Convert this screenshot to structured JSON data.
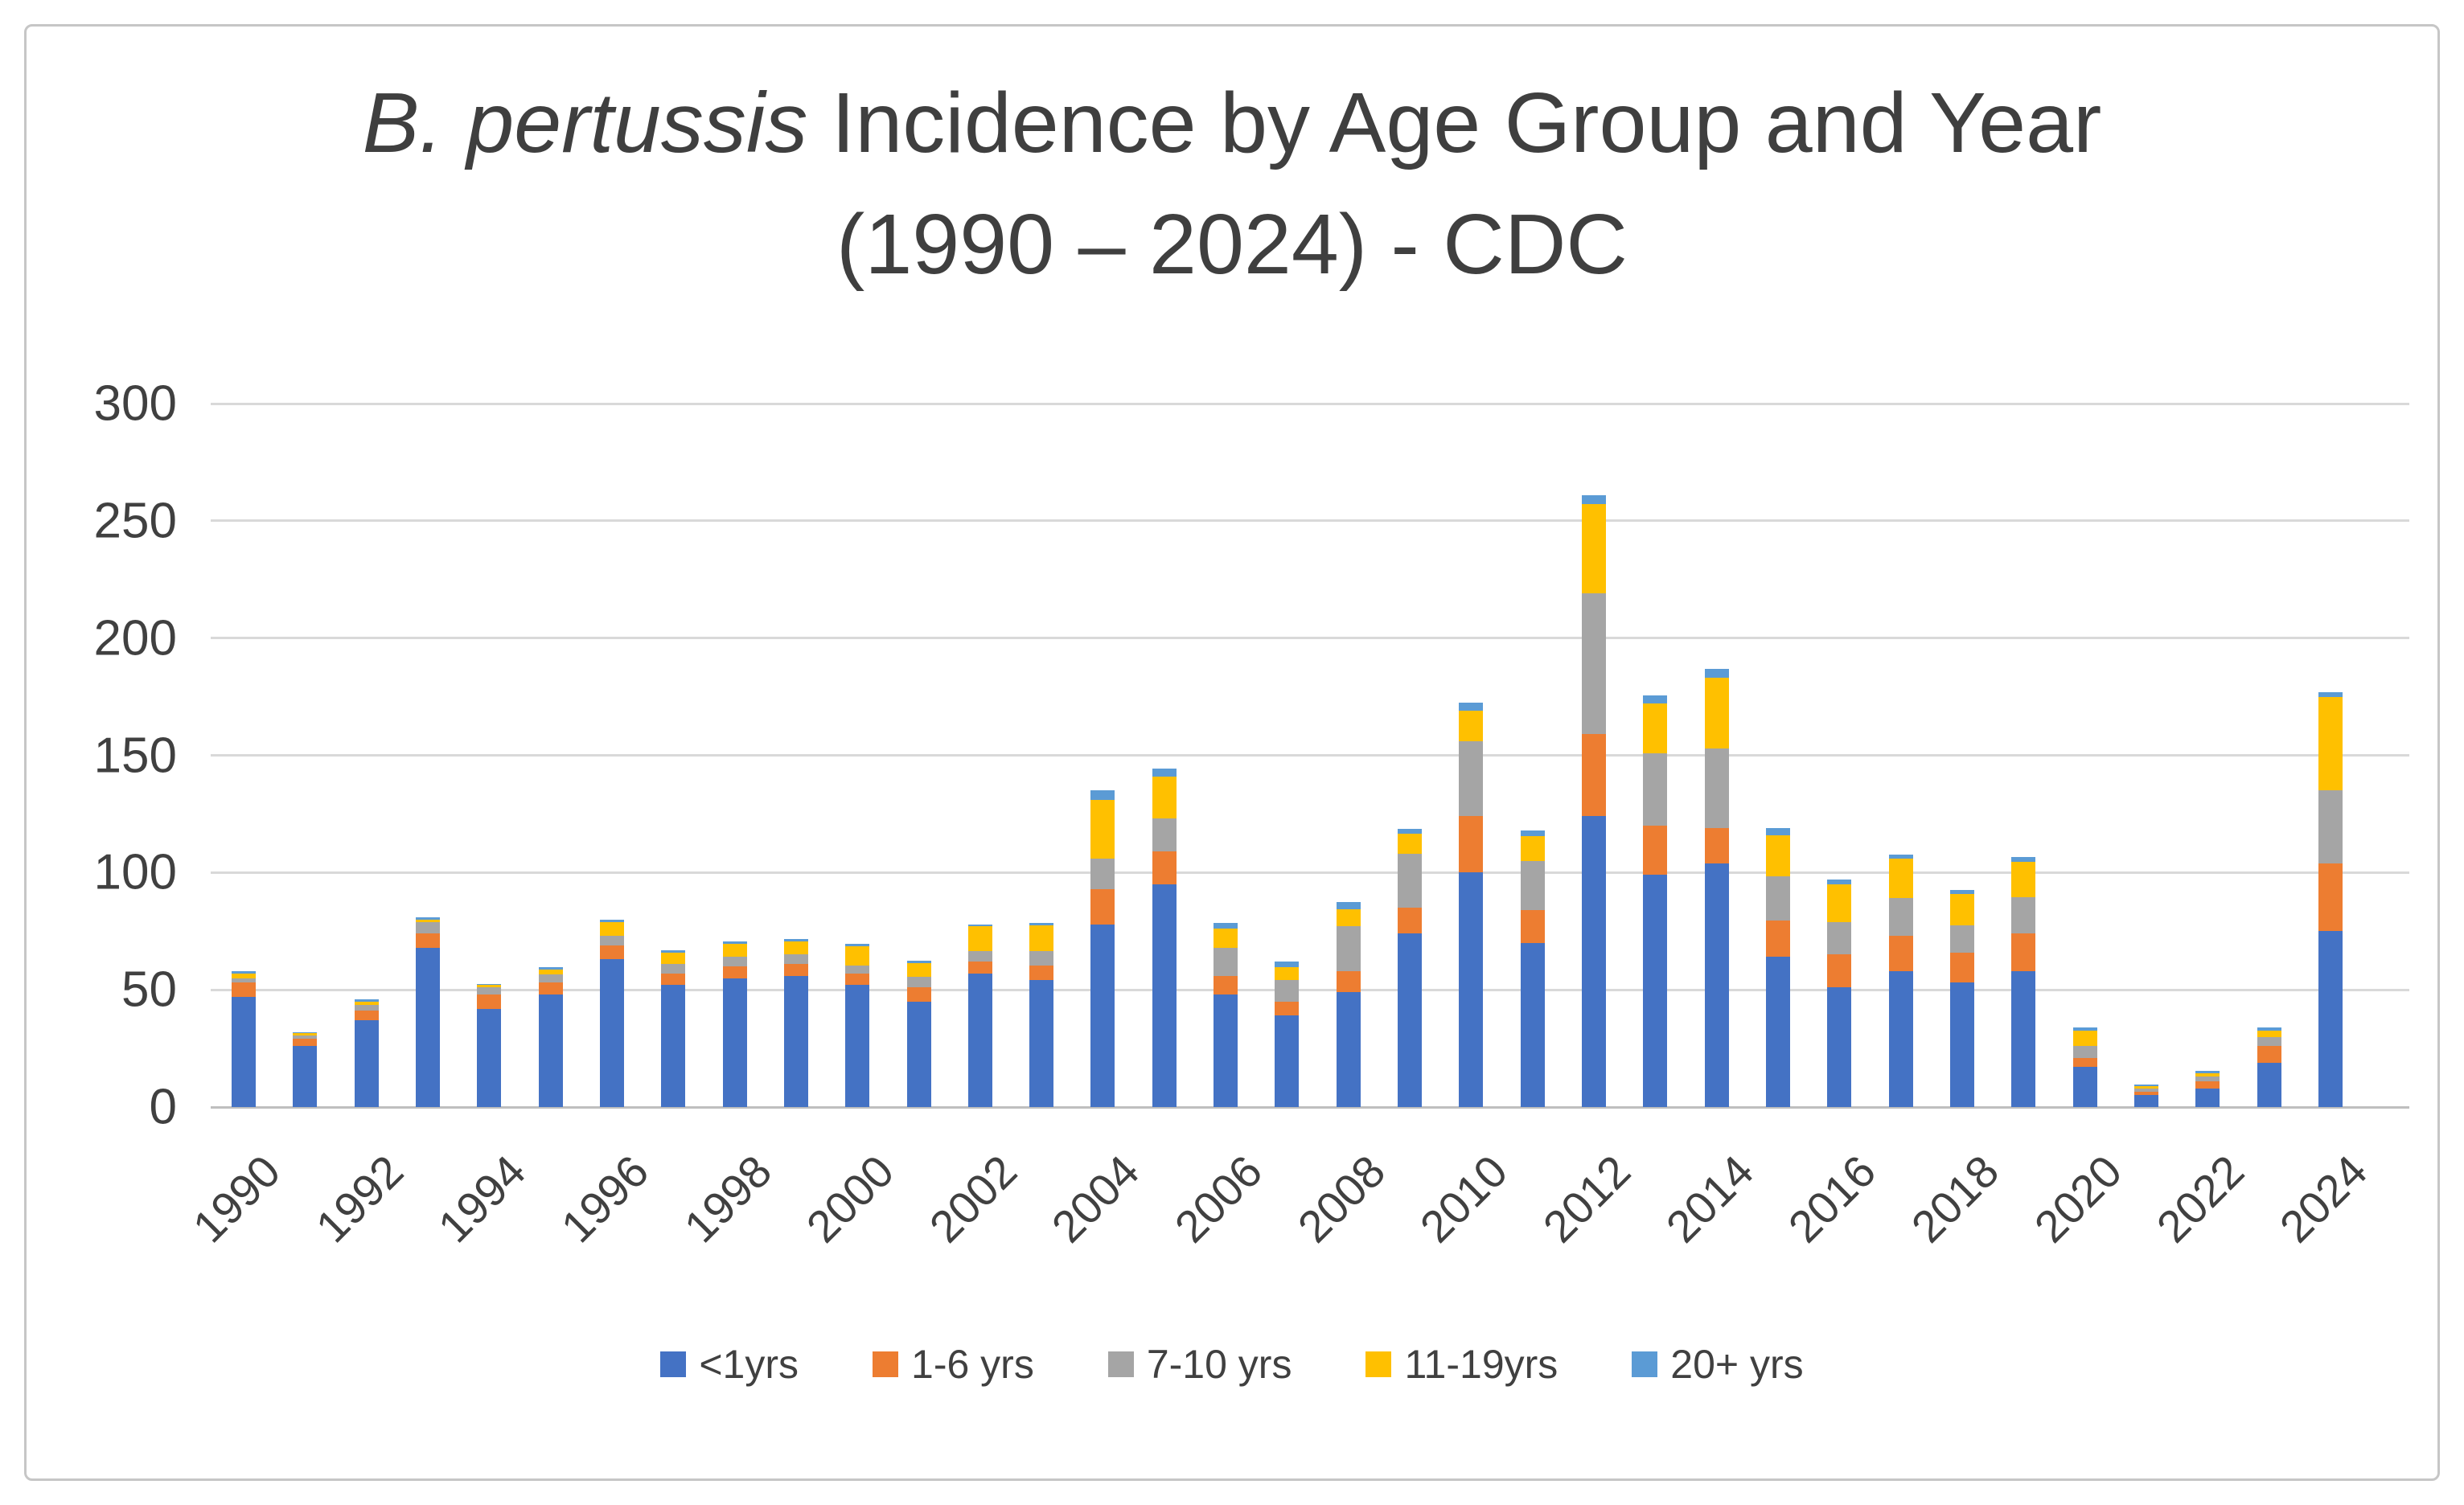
{
  "frame": {
    "border_color": "#c6c6c6",
    "background": "#ffffff"
  },
  "chart_data": {
    "type": "bar",
    "stacked": true,
    "title": {
      "italic_part": "B. pertussis",
      "regular_part": " Incidence by Age Group and Year",
      "line2": "(1990 – 2024) - CDC"
    },
    "categories": [
      1990,
      1991,
      1992,
      1993,
      1994,
      1995,
      1996,
      1997,
      1998,
      1999,
      2000,
      2001,
      2002,
      2003,
      2004,
      2005,
      2006,
      2007,
      2008,
      2009,
      2010,
      2011,
      2012,
      2013,
      2014,
      2015,
      2016,
      2017,
      2018,
      2019,
      2020,
      2021,
      2022,
      2023,
      2024
    ],
    "x_tick_labels": [
      "1990",
      "1992",
      "1994",
      "1996",
      "1998",
      "2000",
      "2002",
      "2004",
      "2006",
      "2008",
      "2010",
      "2012",
      "2014",
      "2016",
      "2018",
      "2020",
      "2022",
      "2024"
    ],
    "series": [
      {
        "name": "<1yrs",
        "color": "#4472C4",
        "values": [
          47,
          26,
          37,
          68,
          42,
          48,
          63,
          52,
          55,
          56,
          52,
          45,
          57,
          54,
          78,
          95,
          48,
          39,
          49,
          74,
          100,
          70,
          124,
          99,
          104,
          64,
          51,
          58,
          53,
          58,
          17,
          5,
          8,
          19,
          75
        ]
      },
      {
        "name": "1-6 yrs",
        "color": "#ED7D31",
        "values": [
          6,
          3,
          4,
          6,
          6,
          5,
          6,
          5,
          5,
          5,
          5,
          6,
          5,
          6.5,
          15,
          14,
          8,
          6,
          9,
          11,
          24,
          14,
          35,
          21,
          15,
          15.5,
          14,
          15,
          13,
          16,
          4,
          1.5,
          3,
          7,
          29
        ]
      },
      {
        "name": "7-10 yrs",
        "color": "#A5A5A5",
        "values": [
          2,
          1.5,
          2.5,
          5,
          3,
          3.5,
          4,
          4,
          4,
          4,
          3.5,
          4.5,
          4.5,
          6,
          13,
          14,
          12,
          9,
          19,
          23,
          32,
          21,
          60,
          31,
          34,
          19,
          14,
          16,
          11.5,
          15.5,
          5,
          1.5,
          2,
          4,
          31
        ]
      },
      {
        "name": "11-19yrs",
        "color": "#FFC000",
        "values": [
          2,
          1,
          1.5,
          1,
          1,
          2,
          6,
          5,
          5.5,
          5.5,
          8,
          6,
          10.5,
          11,
          25,
          18,
          8,
          5.5,
          7.5,
          8.5,
          13,
          10.5,
          38,
          21,
          30,
          17.5,
          16,
          17,
          13.5,
          15,
          6.5,
          1,
          1.5,
          2.5,
          40
        ]
      },
      {
        "name": "20+ yrs",
        "color": "#5B9BD5",
        "values": [
          1,
          0.5,
          1,
          1,
          0.5,
          1,
          1,
          1,
          1,
          1,
          1,
          1,
          1,
          1,
          4,
          3.5,
          2.5,
          2.5,
          3,
          2,
          3.5,
          2.5,
          4,
          3.5,
          4,
          3,
          2,
          1.5,
          1.5,
          2,
          1.5,
          0.7,
          1,
          1.5,
          2
        ]
      }
    ],
    "ylim": [
      0,
      300
    ],
    "yticks": [
      0,
      50,
      100,
      150,
      200,
      250,
      300
    ],
    "grid": true,
    "legend_position": "bottom",
    "gridline_color": "#d9d9d9",
    "axis_line_color": "#bfbfbf",
    "text_color": "#404040"
  }
}
